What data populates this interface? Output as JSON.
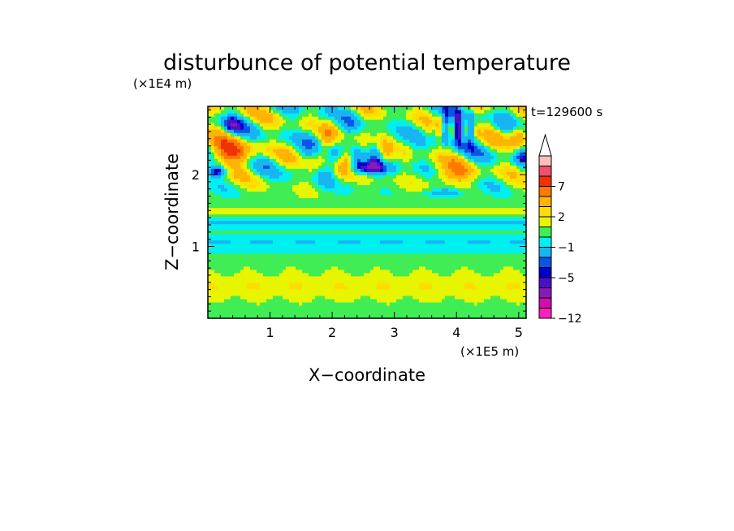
{
  "chart_data": {
    "type": "heatmap",
    "title": "disturbunce of potential temperature",
    "time_label": "t=129600 s",
    "xlabel": "X−coordinate",
    "ylabel": "Z−coordinate",
    "x_unit": "(×1E5 m)",
    "y_unit": "(×1E4 m)",
    "xlim": [
      0,
      5.12
    ],
    "ylim": [
      0,
      2.95
    ],
    "x_ticks": [
      1,
      2,
      3,
      4,
      5
    ],
    "x_tick_labels": [
      "1",
      "2",
      "3",
      "4",
      "5"
    ],
    "y_ticks": [
      1,
      2
    ],
    "y_tick_labels": [
      "1",
      "2"
    ],
    "colorbar": {
      "levels": [
        -12,
        -11,
        -9,
        -7,
        -5,
        -4,
        -3,
        -1,
        0,
        1,
        2,
        3,
        5,
        7,
        9,
        11
      ],
      "labeled_levels": [
        -12,
        -5,
        -1,
        2,
        7
      ],
      "tick_labels": [
        "−12",
        "−5",
        "−1",
        "2",
        "7"
      ],
      "colors": [
        "#ff1fbf",
        "#d00fa8",
        "#8a1ab8",
        "#4b0fc8",
        "#0000c8",
        "#0a55e6",
        "#19b4f2",
        "#00f0f0",
        "#40ed55",
        "#e8f500",
        "#ffdd00",
        "#ffb400",
        "#ff7800",
        "#f03200",
        "#f0506e",
        "#ffbebe"
      ],
      "extend_max": true
    }
  }
}
